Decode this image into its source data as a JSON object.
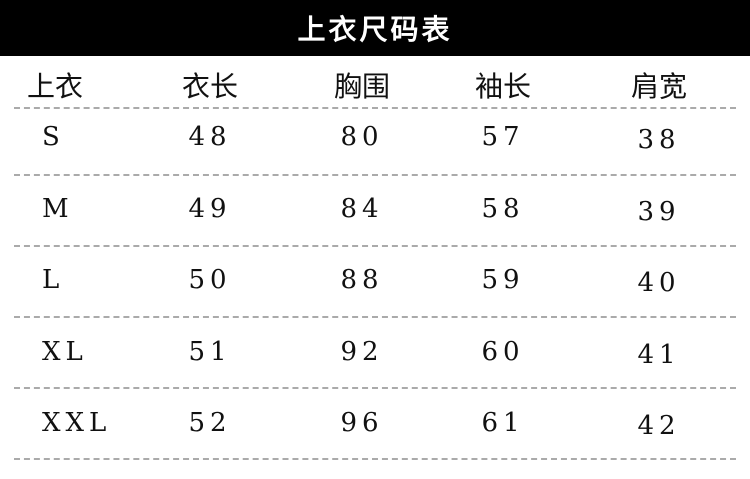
{
  "title": "上衣尺码表",
  "headers": [
    "上衣",
    "衣长",
    "胸围",
    "袖长",
    "肩宽"
  ],
  "rows": [
    [
      "S",
      "48",
      "80",
      "57",
      "38"
    ],
    [
      "M",
      "49",
      "84",
      "58",
      "39"
    ],
    [
      "L",
      "50",
      "88",
      "59",
      "40"
    ],
    [
      "XL",
      "51",
      "92",
      "60",
      "41"
    ],
    [
      "XXL",
      "52",
      "96",
      "61",
      "42"
    ]
  ]
}
